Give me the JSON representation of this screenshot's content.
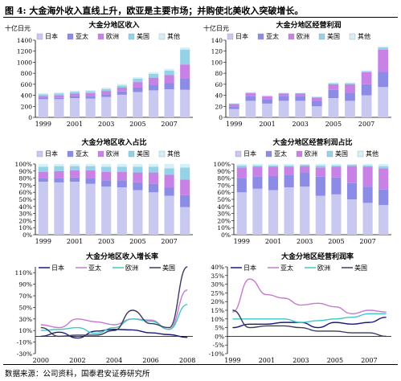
{
  "figure_title": "图 4:  大金海外收入直线上升，欧亚是主要市场；并购使北美收入突破增长。",
  "source_note": "数据来源：公司资料，国泰君安证券研究所",
  "colors": {
    "japan": "#c8c8f0",
    "asia": "#8c8ce6",
    "europe": "#c882e6",
    "america": "#96d2e6",
    "other": "#d6f0f8"
  },
  "chart_data": [
    {
      "type": "bar",
      "stacked": true,
      "title": "大金分地区收入",
      "unit_label": "十亿日元",
      "categories": [
        "1999",
        "2000",
        "2001",
        "2002",
        "2003",
        "2004",
        "2005",
        "2006",
        "2007",
        "2008"
      ],
      "tick_labels": [
        "1999",
        "2001",
        "2003",
        "2005",
        "2007"
      ],
      "ylim": [
        0,
        1400
      ],
      "yticks": [
        0,
        200,
        400,
        600,
        800,
        1000,
        1200,
        1400
      ],
      "legend": [
        "日本",
        "亚太",
        "欧洲",
        "美国",
        "其他"
      ],
      "series": [
        {
          "name": "日本",
          "values": [
            330,
            330,
            350,
            340,
            370,
            410,
            460,
            490,
            510,
            500
          ]
        },
        {
          "name": "亚太",
          "values": [
            20,
            25,
            30,
            40,
            50,
            60,
            80,
            100,
            110,
            200
          ]
        },
        {
          "name": "欧洲",
          "values": [
            40,
            45,
            50,
            60,
            60,
            70,
            100,
            130,
            150,
            260
          ]
        },
        {
          "name": "美国",
          "values": [
            30,
            35,
            35,
            35,
            35,
            40,
            60,
            70,
            80,
            270
          ]
        },
        {
          "name": "其他",
          "values": [
            20,
            20,
            20,
            20,
            25,
            25,
            30,
            30,
            30,
            40
          ]
        }
      ]
    },
    {
      "type": "bar",
      "stacked": true,
      "title": "大金分地区经营利润",
      "unit_label": "十亿日元",
      "categories": [
        "1999",
        "2000",
        "2001",
        "2002",
        "2003",
        "2004",
        "2005",
        "2006",
        "2007",
        "2008"
      ],
      "tick_labels": [
        "1999",
        "2001",
        "2003",
        "2005",
        "2007"
      ],
      "ylim": [
        0,
        140
      ],
      "yticks": [
        0,
        20,
        40,
        60,
        80,
        100,
        120,
        140
      ],
      "legend": [
        "日本",
        "亚太",
        "欧洲",
        "美国",
        "其他"
      ],
      "series": [
        {
          "name": "日本",
          "values": [
            15,
            30,
            25,
            30,
            30,
            20,
            35,
            30,
            40,
            55
          ]
        },
        {
          "name": "亚太",
          "values": [
            5,
            8,
            8,
            8,
            8,
            10,
            15,
            15,
            20,
            28
          ]
        },
        {
          "name": "欧洲",
          "values": [
            4,
            6,
            5,
            5,
            5,
            6,
            10,
            15,
            22,
            40
          ]
        },
        {
          "name": "美国",
          "values": [
            1,
            1,
            1,
            1,
            1,
            1,
            2,
            2,
            2,
            4
          ]
        },
        {
          "name": "其他",
          "values": [
            1,
            1,
            1,
            1,
            1,
            1,
            1,
            1,
            1,
            2
          ]
        }
      ]
    },
    {
      "type": "bar",
      "stacked": true,
      "title": "大金分地区收入占比",
      "categories": [
        "1999",
        "2000",
        "2001",
        "2002",
        "2003",
        "2004",
        "2005",
        "2006",
        "2007",
        "2008"
      ],
      "tick_labels": [
        "1999",
        "2001",
        "2003",
        "2005",
        "2007"
      ],
      "ylim": [
        0,
        100
      ],
      "yticks": [
        0,
        10,
        20,
        30,
        40,
        50,
        60,
        70,
        80,
        90,
        100
      ],
      "percent": true,
      "legend": [
        "日本",
        "亚太",
        "欧洲",
        "美国",
        "其他"
      ],
      "series": [
        {
          "name": "日本",
          "values": [
            75,
            74,
            75,
            72,
            68,
            67,
            63,
            60,
            55,
            39
          ]
        },
        {
          "name": "亚太",
          "values": [
            5,
            6,
            6,
            8,
            9,
            10,
            11,
            12,
            12,
            17
          ]
        },
        {
          "name": "欧洲",
          "values": [
            9,
            10,
            10,
            11,
            12,
            12,
            14,
            16,
            18,
            22
          ]
        },
        {
          "name": "美国",
          "values": [
            7,
            7,
            6,
            6,
            7,
            7,
            8,
            8,
            9,
            17
          ]
        },
        {
          "name": "其他",
          "values": [
            4,
            3,
            3,
            3,
            4,
            4,
            4,
            4,
            6,
            5
          ]
        }
      ]
    },
    {
      "type": "bar",
      "stacked": true,
      "title": "大金分地区经营利润占比",
      "categories": [
        "1999",
        "2000",
        "2001",
        "2002",
        "2003",
        "2004",
        "2005",
        "2006",
        "2007",
        "2008"
      ],
      "tick_labels": [
        "1999",
        "2001",
        "2003",
        "2005",
        "2007"
      ],
      "ylim": [
        0,
        100
      ],
      "yticks": [
        0,
        10,
        20,
        30,
        40,
        50,
        60,
        70,
        80,
        90,
        100
      ],
      "percent": true,
      "legend": [
        "日本",
        "亚太",
        "欧洲",
        "美国",
        "其他"
      ],
      "series": [
        {
          "name": "日本",
          "values": [
            60,
            65,
            63,
            67,
            68,
            55,
            57,
            50,
            45,
            42
          ]
        },
        {
          "name": "亚太",
          "values": [
            20,
            17,
            20,
            18,
            20,
            27,
            24,
            23,
            23,
            22
          ]
        },
        {
          "name": "欧洲",
          "values": [
            15,
            14,
            13,
            11,
            9,
            13,
            15,
            24,
            28,
            30
          ]
        },
        {
          "name": "美国",
          "values": [
            3,
            2,
            2,
            2,
            2,
            3,
            2,
            2,
            2,
            3
          ]
        },
        {
          "name": "其他",
          "values": [
            2,
            2,
            2,
            2,
            1,
            2,
            2,
            1,
            2,
            3
          ]
        }
      ]
    },
    {
      "type": "line",
      "title": "大金分地区收入增长率",
      "x": [
        2000,
        2001,
        2002,
        2003,
        2004,
        2005,
        2006,
        2007,
        2008
      ],
      "tick_labels": [
        "2000",
        "2002",
        "2004",
        "2006",
        "2008"
      ],
      "ylim": [
        -30,
        120
      ],
      "yticks": [
        -30,
        -10,
        10,
        30,
        50,
        70,
        90,
        110
      ],
      "percent": true,
      "legend": [
        "日本",
        "亚太",
        "欧洲",
        "美国"
      ],
      "series": [
        {
          "name": "日本",
          "values": [
            0,
            7,
            -3,
            9,
            12,
            11,
            6,
            3,
            -2
          ]
        },
        {
          "name": "亚太",
          "values": [
            20,
            15,
            30,
            25,
            20,
            30,
            28,
            12,
            80
          ]
        },
        {
          "name": "欧洲",
          "values": [
            10,
            12,
            15,
            5,
            15,
            30,
            26,
            12,
            55
          ]
        },
        {
          "name": "美国",
          "values": [
            15,
            0,
            2,
            2,
            10,
            45,
            22,
            15,
            230
          ]
        }
      ]
    },
    {
      "type": "line",
      "title": "大金分地区经营利润率",
      "x": [
        1999,
        2000,
        2001,
        2002,
        2003,
        2004,
        2005,
        2006,
        2007,
        2008
      ],
      "tick_labels": [
        "1999",
        "2001",
        "2003",
        "2005",
        "2007"
      ],
      "ylim": [
        -10,
        40
      ],
      "yticks": [
        -10,
        -5,
        0,
        5,
        10,
        15,
        20,
        25,
        30,
        35,
        40
      ],
      "percent": true,
      "legend": [
        "日本",
        "亚太",
        "欧洲",
        "美国"
      ],
      "series": [
        {
          "name": "日本",
          "values": [
            5,
            7,
            7,
            8,
            8,
            5,
            8,
            7,
            8,
            11
          ]
        },
        {
          "name": "亚太",
          "values": [
            14,
            33,
            24,
            22,
            18,
            19,
            17,
            13,
            15,
            14
          ]
        },
        {
          "name": "欧洲",
          "values": [
            10,
            10,
            10,
            10,
            8,
            9,
            10,
            11,
            13,
            13
          ]
        },
        {
          "name": "美国",
          "values": [
            15,
            5,
            6,
            6,
            5,
            3,
            3,
            2,
            2,
            0
          ]
        }
      ]
    }
  ]
}
